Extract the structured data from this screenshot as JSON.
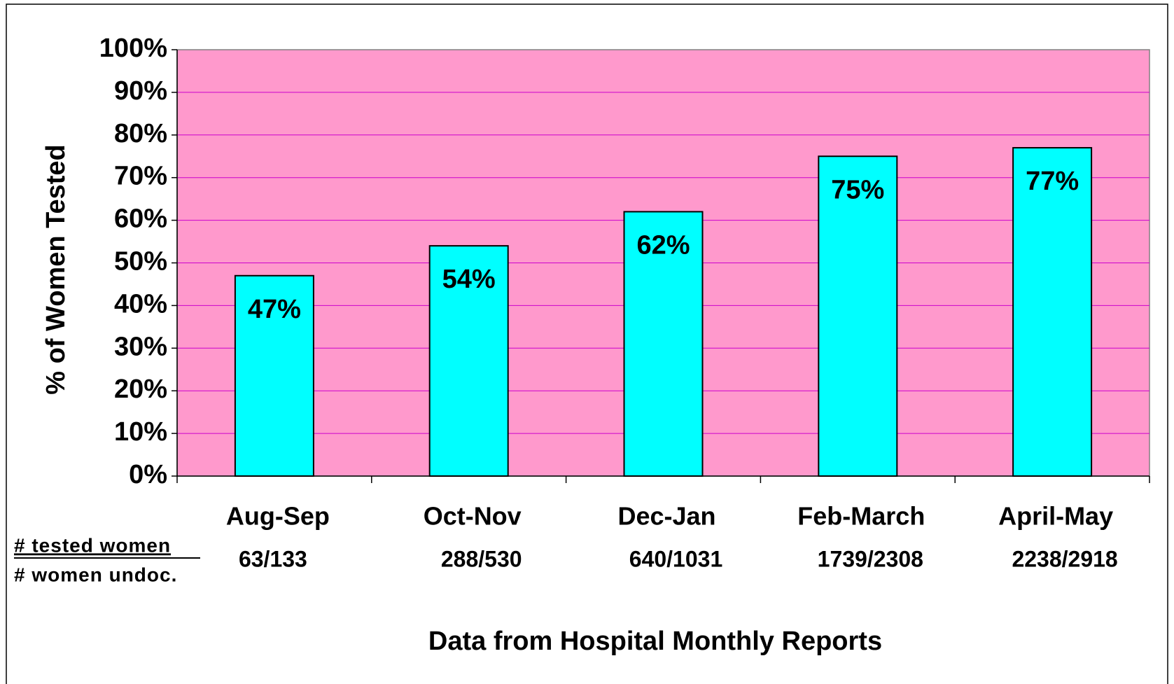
{
  "chart_data": {
    "type": "bar",
    "ylabel": "% of Women Tested",
    "xlabel": "Data from Hospital Monthly Reports",
    "categories": [
      "Aug-Sep",
      "Oct-Nov",
      "Dec-Jan",
      "Feb-March",
      "April-May"
    ],
    "values": [
      47,
      54,
      62,
      75,
      77
    ],
    "value_labels": [
      "47%",
      "54%",
      "62%",
      "75%",
      "77%"
    ],
    "ratio_header": [
      "# tested women",
      "# women undoc."
    ],
    "ratios": [
      "63/133",
      "288/530",
      "640/1031",
      "1739/2308",
      "2238/2918"
    ],
    "color": "#00ffff",
    "plot_background": "#ff99cc",
    "grid_color": "#cc00cc",
    "ylim": [
      0,
      100
    ],
    "yticks": [
      {
        "value": 0,
        "label": "0%"
      },
      {
        "value": 10,
        "label": "10%"
      },
      {
        "value": 20,
        "label": "20%"
      },
      {
        "value": 30,
        "label": "30%"
      },
      {
        "value": 40,
        "label": "40%"
      },
      {
        "value": 50,
        "label": "50%"
      },
      {
        "value": 60,
        "label": "60%"
      },
      {
        "value": 70,
        "label": "70%"
      },
      {
        "value": 80,
        "label": "80%"
      },
      {
        "value": 90,
        "label": "90%"
      },
      {
        "value": 100,
        "label": "100%"
      }
    ],
    "grid": true
  }
}
